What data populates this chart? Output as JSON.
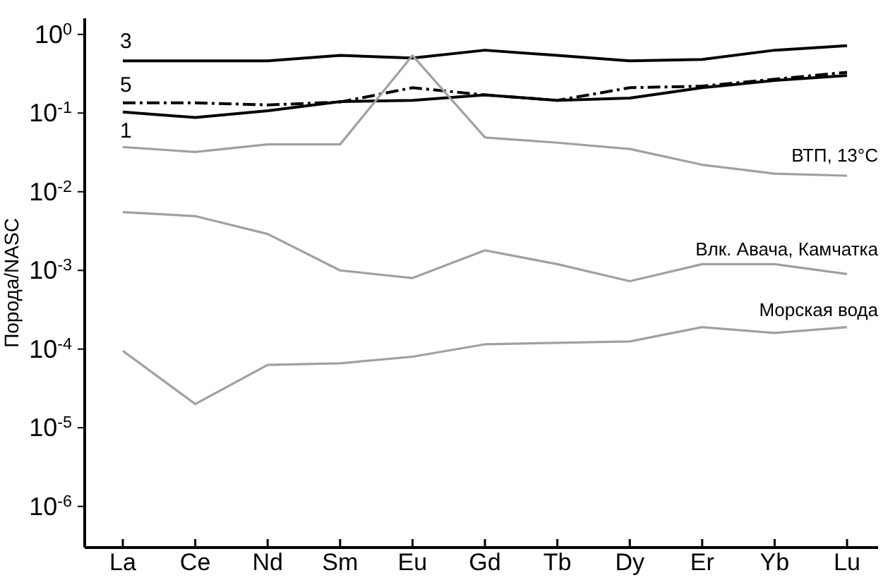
{
  "chart_data": {
    "type": "line",
    "ylabel": "Порода/NASC",
    "categories": [
      "La",
      "Ce",
      "Nd",
      "Sm",
      "Eu",
      "Gd",
      "Tb",
      "Dy",
      "Er",
      "Yb",
      "Lu"
    ],
    "log": true,
    "ylim": [
      3e-07,
      1.6
    ],
    "yticks": [
      {
        "value": 1,
        "label": "10$^{0}$"
      },
      {
        "value": 0.1,
        "label": "10$^{-1}$"
      },
      {
        "value": 0.01,
        "label": "10$^{-2}$"
      },
      {
        "value": 0.001,
        "label": "10$^{-3}$"
      },
      {
        "value": 0.0001,
        "label": "10$^{-4}$"
      },
      {
        "value": 1e-05,
        "label": "10$^{-5}$"
      },
      {
        "value": 1e-06,
        "label": "10$^{-6}$"
      }
    ],
    "series": [
      {
        "name": "3",
        "color": "#000000",
        "line_style": "solid",
        "values": [
          0.46,
          0.46,
          0.46,
          0.54,
          0.5,
          0.63,
          0.54,
          0.46,
          0.48,
          0.63,
          0.72
        ]
      },
      {
        "name": "5",
        "color": "#000000",
        "line_style": "dashed",
        "values": [
          0.135,
          0.135,
          0.127,
          0.138,
          0.21,
          0.17,
          0.145,
          0.21,
          0.22,
          0.27,
          0.33
        ]
      },
      {
        "name": "1",
        "color": "#000000",
        "line_style": "solid",
        "values": [
          0.103,
          0.088,
          0.107,
          0.14,
          0.145,
          0.17,
          0.145,
          0.155,
          0.21,
          0.26,
          0.3
        ]
      },
      {
        "name": "ВТП, 13°C",
        "color": "#a0a0a0",
        "line_style": "solid",
        "values": [
          0.037,
          0.032,
          0.04,
          0.04,
          0.54,
          0.049,
          0.042,
          0.035,
          0.022,
          0.017,
          0.016
        ]
      },
      {
        "name": "Влк. Авача, Камчатка",
        "color": "#a0a0a0",
        "line_style": "solid",
        "values": [
          0.0055,
          0.0049,
          0.0029,
          0.001,
          0.0008,
          0.0018,
          0.0012,
          0.00073,
          0.0012,
          0.0012,
          0.0009
        ]
      },
      {
        "name": "Морская вода",
        "color": "#a0a0a0",
        "line_style": "solid",
        "values": [
          9.5e-05,
          2e-05,
          6.3e-05,
          6.6e-05,
          8e-05,
          0.000115,
          0.00012,
          0.000125,
          0.00019,
          0.00016,
          0.00019
        ]
      }
    ]
  }
}
